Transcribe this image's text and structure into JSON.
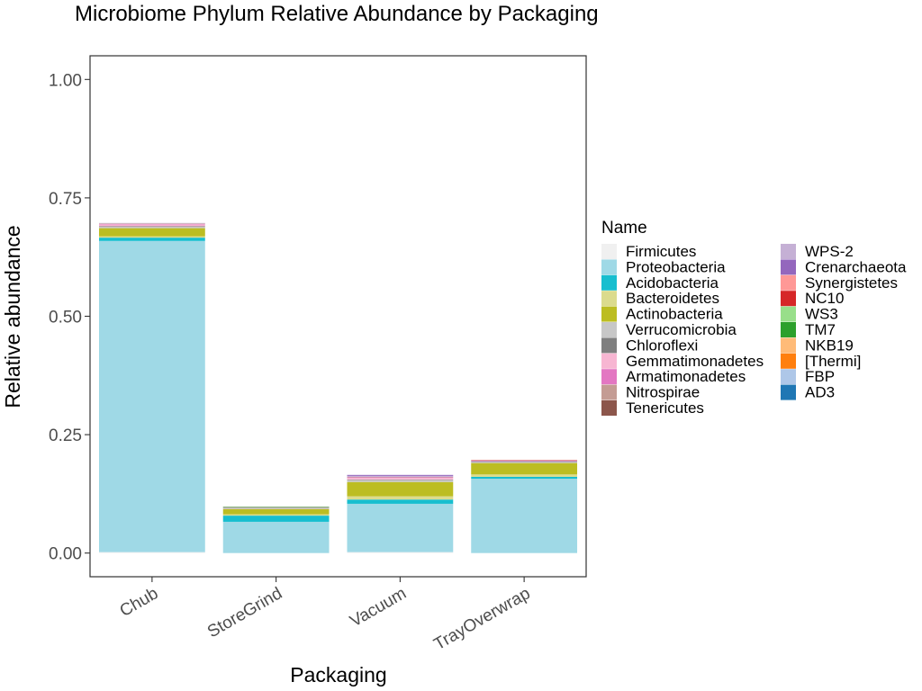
{
  "chart_data": {
    "type": "bar",
    "stacked": true,
    "title": "Microbiome Phylum Relative Abundance by Packaging",
    "xlabel": "Packaging",
    "ylabel": "Relative abundance",
    "categories": [
      "Chub",
      "StoreGrind",
      "Vacuum",
      "TrayOverwrap"
    ],
    "ylim": [
      -0.05,
      1.05
    ],
    "yticks": [
      0.0,
      0.25,
      0.5,
      0.75,
      1.0
    ],
    "ytick_labels": [
      "0.00",
      "0.25",
      "0.50",
      "0.75",
      "1.00"
    ],
    "grid": false,
    "legend": {
      "title": "Name",
      "position": "right",
      "columns": 2
    },
    "series": [
      {
        "name": "Firmicutes",
        "color": "#f0f0f0",
        "values": [
          0.002,
          0.0,
          0.002,
          0.0
        ]
      },
      {
        "name": "Proteobacteria",
        "color": "#9fd9e6",
        "values": [
          0.657,
          0.066,
          0.102,
          0.157
        ]
      },
      {
        "name": "Acidobacteria",
        "color": "#17becf",
        "values": [
          0.007,
          0.013,
          0.009,
          0.004
        ]
      },
      {
        "name": "Bacteroidetes",
        "color": "#dbdb8d",
        "values": [
          0.003,
          0.003,
          0.007,
          0.005
        ]
      },
      {
        "name": "Actinobacteria",
        "color": "#bcbd22",
        "values": [
          0.017,
          0.011,
          0.03,
          0.024
        ]
      },
      {
        "name": "Verrucomicrobia",
        "color": "#c7c7c7",
        "values": [
          0.003,
          0.002,
          0.004,
          0.002
        ]
      },
      {
        "name": "Chloroflexi",
        "color": "#7f7f7f",
        "values": [
          0.001,
          0.001,
          0.001,
          0.001
        ]
      },
      {
        "name": "Gemmatimonadetes",
        "color": "#f7b6d2",
        "values": [
          0.004,
          0.001,
          0.004,
          0.001
        ]
      },
      {
        "name": "Armatimonadetes",
        "color": "#e377c2",
        "values": [
          0.001,
          0.0,
          0.001,
          0.0
        ]
      },
      {
        "name": "Nitrospirae",
        "color": "#c49c94",
        "values": [
          0.001,
          0.0,
          0.001,
          0.0
        ]
      },
      {
        "name": "Tenericutes",
        "color": "#8c564b",
        "values": [
          0.0,
          0.0,
          0.0,
          0.0
        ]
      },
      {
        "name": "WPS-2",
        "color": "#c5b0d5",
        "values": [
          0.001,
          0.0,
          0.002,
          0.0
        ]
      },
      {
        "name": "Crenarchaeota",
        "color": "#9467bd",
        "values": [
          0.0,
          0.0,
          0.002,
          0.001
        ]
      },
      {
        "name": "Synergistetes",
        "color": "#ff9896",
        "values": [
          0.0,
          0.0,
          0.0,
          0.0
        ]
      },
      {
        "name": "NC10",
        "color": "#d62728",
        "values": [
          0.0,
          0.0,
          0.0,
          0.001
        ]
      },
      {
        "name": "WS3",
        "color": "#98df8a",
        "values": [
          0.0,
          0.0,
          0.0,
          0.0
        ]
      },
      {
        "name": "TM7",
        "color": "#2ca02c",
        "values": [
          0.0,
          0.001,
          0.0,
          0.0
        ]
      },
      {
        "name": "NKB19",
        "color": "#ffbb78",
        "values": [
          0.0,
          0.0,
          0.0,
          0.0
        ]
      },
      {
        "name": "[Thermi]",
        "color": "#ff7f0e",
        "values": [
          0.0,
          0.0,
          0.0,
          0.0
        ]
      },
      {
        "name": "FBP",
        "color": "#aec7e8",
        "values": [
          0.0,
          0.0,
          0.0,
          0.0
        ]
      },
      {
        "name": "AD3",
        "color": "#1f77b4",
        "values": [
          0.0,
          0.0,
          0.0,
          0.0
        ]
      }
    ]
  }
}
